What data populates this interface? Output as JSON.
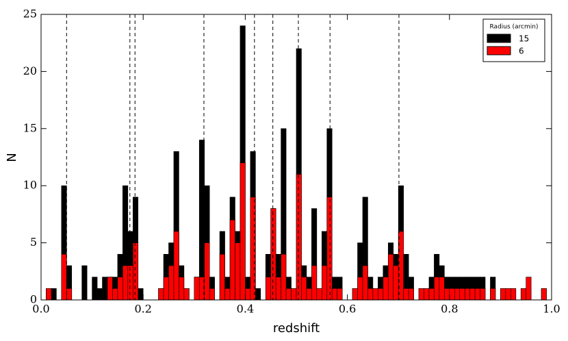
{
  "chart_data": {
    "type": "histogram",
    "xlabel": "redshift",
    "ylabel": "N",
    "bins": [
      0,
      0.01,
      0.02,
      0.03,
      0.04,
      0.05,
      0.06,
      0.07,
      0.08,
      0.09,
      0.1,
      0.11,
      0.12,
      0.13,
      0.14,
      0.15,
      0.16,
      0.17,
      0.18,
      0.19,
      0.2,
      0.21,
      0.22,
      0.23,
      0.24,
      0.25,
      0.26,
      0.27,
      0.28,
      0.29,
      0.3,
      0.31,
      0.32,
      0.33,
      0.34,
      0.35,
      0.36,
      0.37,
      0.38,
      0.39,
      0.4,
      0.41,
      0.42,
      0.43,
      0.44,
      0.45,
      0.46,
      0.47,
      0.48,
      0.49,
      0.5,
      0.51,
      0.52,
      0.53,
      0.54,
      0.55,
      0.56,
      0.57,
      0.58,
      0.59,
      0.6,
      0.61,
      0.62,
      0.63,
      0.64,
      0.65,
      0.66,
      0.67,
      0.68,
      0.69,
      0.7,
      0.71,
      0.72,
      0.73,
      0.74,
      0.75,
      0.76,
      0.77,
      0.78,
      0.79,
      0.8,
      0.81,
      0.82,
      0.83,
      0.84,
      0.85,
      0.86,
      0.87,
      0.88,
      0.89,
      0.9,
      0.91,
      0.92,
      0.93,
      0.94,
      0.95,
      0.96,
      0.97,
      0.98,
      0.99,
      1.0
    ],
    "series": [
      {
        "name": "15",
        "color": "#000000",
        "values": [
          0,
          1,
          1,
          0,
          10,
          3,
          0,
          0,
          3,
          0,
          2,
          1,
          2,
          2,
          2,
          4,
          10,
          6,
          9,
          1,
          0,
          0,
          0,
          1,
          4,
          5,
          13,
          3,
          1,
          0,
          2,
          14,
          10,
          2,
          0,
          6,
          2,
          9,
          6,
          24,
          2,
          13,
          1,
          0,
          4,
          8,
          4,
          15,
          2,
          1,
          22,
          3,
          2,
          8,
          1,
          6,
          15,
          2,
          2,
          0,
          0,
          1,
          5,
          9,
          2,
          1,
          2,
          3,
          5,
          4,
          10,
          4,
          2,
          0,
          1,
          1,
          2,
          4,
          3,
          2,
          2,
          2,
          2,
          2,
          2,
          2,
          2,
          0,
          2,
          0,
          1,
          1,
          1,
          0,
          1,
          1,
          0,
          0,
          1,
          0
        ]
      },
      {
        "name": "6",
        "color": "#ff0000",
        "values": [
          0,
          1,
          0,
          0,
          4,
          1,
          0,
          0,
          0,
          0,
          0,
          0,
          0,
          2,
          1,
          2,
          3,
          3,
          5,
          0,
          0,
          0,
          0,
          1,
          2,
          3,
          6,
          2,
          1,
          0,
          2,
          2,
          5,
          1,
          0,
          4,
          1,
          7,
          5,
          12,
          1,
          9,
          0,
          0,
          2,
          8,
          2,
          4,
          1,
          1,
          11,
          2,
          1,
          3,
          1,
          3,
          9,
          1,
          1,
          0,
          0,
          1,
          2,
          3,
          1,
          1,
          1,
          2,
          4,
          3,
          6,
          1,
          1,
          0,
          1,
          1,
          1,
          2,
          2,
          1,
          1,
          1,
          1,
          1,
          1,
          1,
          1,
          0,
          1,
          0,
          1,
          1,
          1,
          0,
          1,
          2,
          0,
          0,
          1,
          0
        ]
      }
    ],
    "vlines": [
      0.05,
      0.174,
      0.184,
      0.319,
      0.418,
      0.454,
      0.504,
      0.566,
      0.701
    ],
    "xlim": [
      0,
      1.0
    ],
    "ylim": [
      0,
      25
    ],
    "xticks": [
      {
        "value": 0,
        "label": "0.0"
      },
      0.2,
      0.4,
      0.6,
      0.8,
      {
        "value": 1.0,
        "label": "1.0"
      }
    ],
    "yticks": [
      0,
      5,
      10,
      15,
      20,
      25
    ],
    "legend": {
      "title": "Radius (arcmin)",
      "loc": "upper right"
    }
  }
}
